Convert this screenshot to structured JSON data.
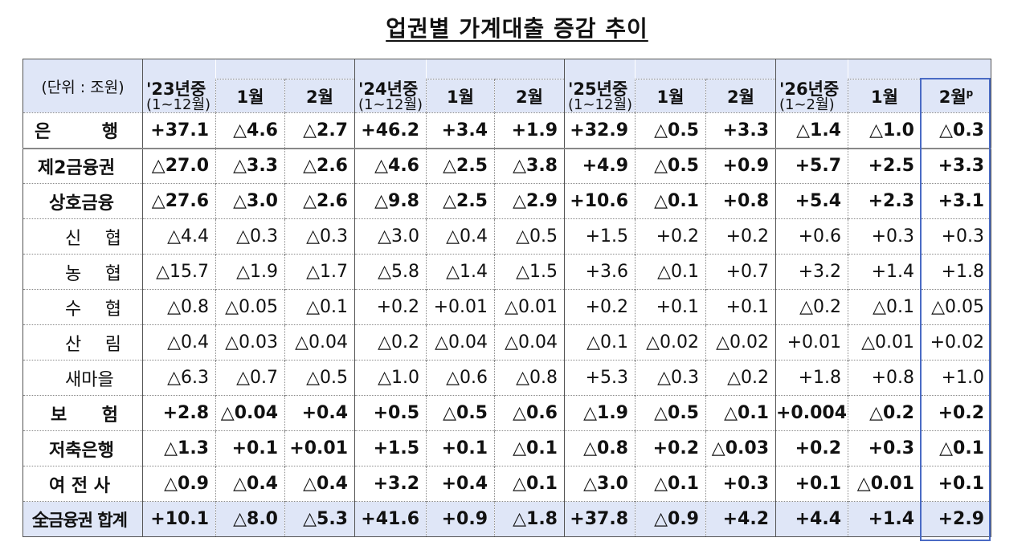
{
  "title": "업권별 가계대출 증감 추이",
  "header": {
    "unit_label": "(단위 : 조원)",
    "groups": [
      {
        "year": "'23년중",
        "range": "(1~12월)",
        "months": [
          "1월",
          "2월"
        ]
      },
      {
        "year": "'24년중",
        "range": "(1~12월)",
        "months": [
          "1월",
          "2월"
        ]
      },
      {
        "year": "'25년중",
        "range": "(1~12월)",
        "months": [
          "1월",
          "2월"
        ]
      },
      {
        "year": "'26년중",
        "range": "(1~2월)",
        "months": [
          "1월",
          "2월"
        ]
      }
    ],
    "preliminary_mark": "p"
  },
  "rows": [
    {
      "label": "은 행",
      "label_parts": [
        "은",
        "행"
      ],
      "level": 0,
      "style": "bold",
      "values": [
        "+37.1",
        "△4.6",
        "△2.7",
        "+46.2",
        "+3.4",
        "+1.9",
        "+32.9",
        "△0.5",
        "+3.3",
        "△1.4",
        "△1.0",
        "△0.3"
      ]
    },
    {
      "label": "제2금융권",
      "level": 0,
      "style": "bold",
      "values": [
        "△27.0",
        "△3.3",
        "△2.6",
        "△4.6",
        "△2.5",
        "△3.8",
        "+4.9",
        "△0.5",
        "+0.9",
        "+5.7",
        "+2.5",
        "+3.3"
      ]
    },
    {
      "label": "상호금융",
      "level": 1,
      "style": "bold",
      "values": [
        "△27.6",
        "△3.0",
        "△2.6",
        "△9.8",
        "△2.5",
        "△2.9",
        "+10.6",
        "△0.1",
        "+0.8",
        "+5.4",
        "+2.3",
        "+3.1"
      ]
    },
    {
      "label": "신 협",
      "label_parts": [
        "신",
        "협"
      ],
      "level": 2,
      "style": "light",
      "values": [
        "△4.4",
        "△0.3",
        "△0.3",
        "△3.0",
        "△0.4",
        "△0.5",
        "+1.5",
        "+0.2",
        "+0.2",
        "+0.6",
        "+0.3",
        "+0.3"
      ]
    },
    {
      "label": "농 협",
      "label_parts": [
        "농",
        "협"
      ],
      "level": 2,
      "style": "light",
      "values": [
        "△15.7",
        "△1.9",
        "△1.7",
        "△5.8",
        "△1.4",
        "△1.5",
        "+3.6",
        "△0.1",
        "+0.7",
        "+3.2",
        "+1.4",
        "+1.8"
      ]
    },
    {
      "label": "수 협",
      "label_parts": [
        "수",
        "협"
      ],
      "level": 2,
      "style": "light",
      "values": [
        "△0.8",
        "△0.05",
        "△0.1",
        "+0.2",
        "+0.01",
        "△0.01",
        "+0.2",
        "+0.1",
        "+0.1",
        "△0.2",
        "△0.1",
        "△0.05"
      ]
    },
    {
      "label": "산 림",
      "label_parts": [
        "산",
        "림"
      ],
      "level": 2,
      "style": "light",
      "values": [
        "△0.4",
        "△0.03",
        "△0.04",
        "△0.2",
        "△0.04",
        "△0.04",
        "△0.1",
        "△0.02",
        "△0.02",
        "+0.01",
        "△0.01",
        "+0.02"
      ]
    },
    {
      "label": "새마을",
      "level": 2,
      "style": "light",
      "values": [
        "△6.3",
        "△0.7",
        "△0.5",
        "△1.0",
        "△0.6",
        "△0.8",
        "+5.3",
        "△0.3",
        "△0.2",
        "+1.8",
        "+0.8",
        "+1.0"
      ]
    },
    {
      "label": "보 험",
      "label_parts": [
        "보",
        "험"
      ],
      "level": 1,
      "style": "bold",
      "values": [
        "+2.8",
        "△0.04",
        "+0.4",
        "+0.5",
        "△0.5",
        "△0.6",
        "△1.9",
        "△0.5",
        "△0.1",
        "+0.004",
        "△0.2",
        "+0.2"
      ]
    },
    {
      "label": "저축은행",
      "level": 1,
      "style": "bold",
      "values": [
        "△1.3",
        "+0.1",
        "+0.01",
        "+1.5",
        "+0.1",
        "△0.1",
        "△0.8",
        "+0.2",
        "△0.03",
        "+0.2",
        "+0.3",
        "△0.1"
      ]
    },
    {
      "label": "여 전 사",
      "level": 1,
      "style": "bold",
      "values": [
        "△0.9",
        "△0.4",
        "△0.4",
        "+3.2",
        "+0.4",
        "△0.1",
        "△3.0",
        "△0.1",
        "+0.3",
        "+0.1",
        "△0.01",
        "+0.1"
      ]
    }
  ],
  "total": {
    "label": "全금융권 합계",
    "values": [
      "+10.1",
      "△8.0",
      "△5.3",
      "+41.6",
      "+0.9",
      "△1.8",
      "+37.8",
      "△0.9",
      "+4.2",
      "+4.4",
      "+1.4",
      "+2.9"
    ]
  },
  "colors": {
    "header_bg": "#dfe6f7",
    "highlight_border": "#4a6bc4",
    "border": "#555555"
  }
}
